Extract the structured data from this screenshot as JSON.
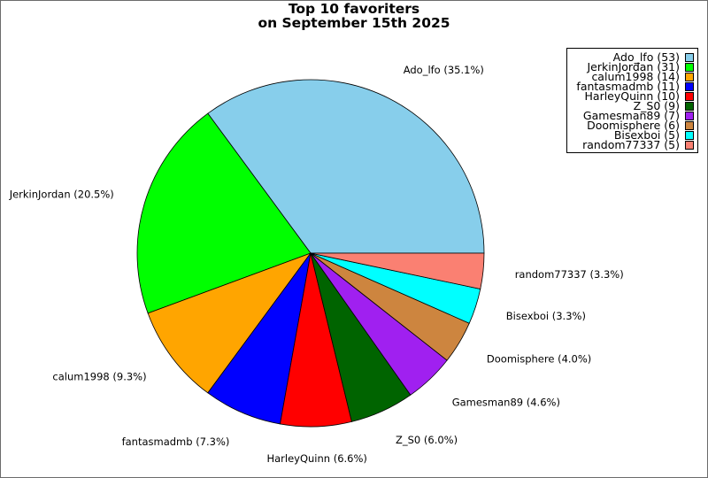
{
  "chart_data": {
    "type": "pie",
    "title": [
      "Top 10 favoriters",
      "on September 15th 2025"
    ],
    "legend_position": "top-right",
    "slices": [
      {
        "name": "Ado_lfo",
        "value": 53,
        "percent": "35.1%",
        "color": "#87ceeb"
      },
      {
        "name": "JerkinJordan",
        "value": 31,
        "percent": "20.5%",
        "color": "#00ff00"
      },
      {
        "name": "calum1998",
        "value": 14,
        "percent": "9.3%",
        "color": "#ffa500"
      },
      {
        "name": "fantasmadmb",
        "value": 11,
        "percent": "7.3%",
        "color": "#0000ff"
      },
      {
        "name": "HarleyQuinn",
        "value": 10,
        "percent": "6.6%",
        "color": "#ff0000"
      },
      {
        "name": "Z_S0",
        "value": 9,
        "percent": "6.0%",
        "color": "#006400"
      },
      {
        "name": "Gamesman89",
        "value": 7,
        "percent": "4.6%",
        "color": "#a020f0"
      },
      {
        "name": "Doomisphere",
        "value": 6,
        "percent": "4.0%",
        "color": "#cd853f"
      },
      {
        "name": "Bisexboi",
        "value": 5,
        "percent": "3.3%",
        "color": "#00ffff"
      },
      {
        "name": "random77337",
        "value": 5,
        "percent": "3.3%",
        "color": "#fa8072"
      }
    ]
  }
}
